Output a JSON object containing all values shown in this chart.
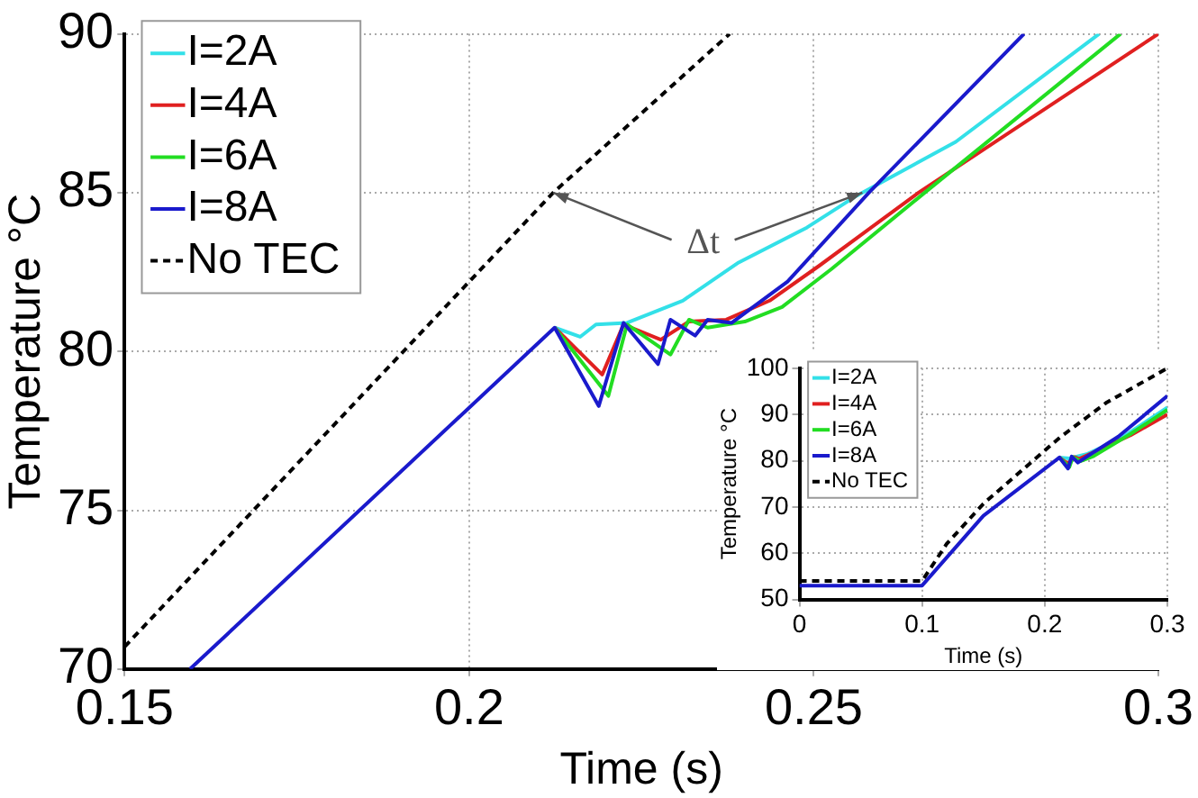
{
  "chart_data": [
    {
      "type": "line",
      "xlabel": "Time (s)",
      "ylabel": "Temperature °C",
      "xlim": [
        0.15,
        0.3
      ],
      "ylim": [
        70,
        90
      ],
      "xticks": [
        0.15,
        0.2,
        0.25,
        0.3
      ],
      "yticks": [
        70,
        75,
        80,
        85,
        90
      ],
      "grid": true,
      "legend": "top left",
      "annotations": [
        {
          "text": "Δt",
          "x": 0.2122,
          "y": 85
        }
      ],
      "series": [
        {
          "name": "I=2A",
          "color": "#33e0e8",
          "line_style": "solid",
          "x": [
            0.2124,
            0.2161,
            0.2184,
            0.2229,
            0.231,
            0.2391,
            0.249,
            0.2562,
            0.2706,
            0.2914
          ],
          "values": [
            80.75,
            80.46,
            80.85,
            80.9,
            81.6,
            82.8,
            83.9,
            84.9,
            86.6,
            90
          ]
        },
        {
          "name": "I=4A",
          "color": "#e02020",
          "line_style": "solid",
          "x": [
            0.2124,
            0.2193,
            0.2224,
            0.2278,
            0.2319,
            0.2373,
            0.2436,
            0.2508,
            0.2652,
            0.3
          ],
          "values": [
            80.75,
            79.27,
            80.85,
            80.37,
            80.94,
            81,
            81.6,
            82.7,
            85,
            90
          ]
        },
        {
          "name": "I=6A",
          "color": "#22dd22",
          "line_style": "solid",
          "x": [
            0.2124,
            0.2202,
            0.2229,
            0.2292,
            0.2319,
            0.2346,
            0.24,
            0.2454,
            0.2526,
            0.2661,
            0.2945
          ],
          "values": [
            80.75,
            78.6,
            80.85,
            79.9,
            81,
            80.75,
            80.94,
            81.4,
            82.6,
            85,
            90
          ]
        },
        {
          "name": "I=8A",
          "color": "#1a1acc",
          "line_style": "solid",
          "x": [
            0.1595,
            0.2124,
            0.2188,
            0.2224,
            0.2274,
            0.2292,
            0.2328,
            0.2346,
            0.2381,
            0.2462,
            0.258,
            0.2805
          ],
          "values": [
            70,
            80.75,
            78.28,
            80.9,
            79.6,
            81,
            80.5,
            81,
            80.9,
            82.2,
            85,
            90
          ]
        },
        {
          "name": "No TEC",
          "color": "#000000",
          "line_style": "dashed",
          "x": [
            0.15,
            0.2122,
            0.2378
          ],
          "values": [
            70.7,
            85,
            90
          ]
        }
      ]
    },
    {
      "type": "line",
      "xlabel": "Time (s)",
      "ylabel": "Temperature °C",
      "xlim": [
        0,
        0.3
      ],
      "ylim": [
        50,
        100
      ],
      "xticks": [
        0,
        0.1,
        0.2,
        0.3
      ],
      "yticks": [
        50,
        60,
        70,
        80,
        90,
        100
      ],
      "grid": true,
      "legend": "top left",
      "series": [
        {
          "name": "I=2A",
          "color": "#33e0e8",
          "line_style": "solid",
          "x": [
            0.212,
            0.22,
            0.235,
            0.26,
            0.3
          ],
          "values": [
            80.7,
            80.5,
            81.5,
            84.5,
            91.5
          ]
        },
        {
          "name": "I=4A",
          "color": "#e02020",
          "line_style": "solid",
          "x": [
            0.212,
            0.219,
            0.224,
            0.228,
            0.27,
            0.3
          ],
          "values": [
            80.7,
            79.3,
            80.8,
            80.4,
            85.5,
            90
          ]
        },
        {
          "name": "I=6A",
          "color": "#22dd22",
          "line_style": "solid",
          "x": [
            0.212,
            0.22,
            0.223,
            0.229,
            0.24,
            0.27,
            0.3
          ],
          "values": [
            80.7,
            78.6,
            80.8,
            79.9,
            81,
            85.8,
            91
          ]
        },
        {
          "name": "I=8A",
          "color": "#1a1acc",
          "line_style": "solid",
          "x": [
            0,
            0.1,
            0.15,
            0.212,
            0.219,
            0.222,
            0.227,
            0.235,
            0.26,
            0.3
          ],
          "values": [
            53,
            53,
            68.1,
            80.7,
            78.3,
            80.9,
            79.6,
            81,
            85.2,
            94
          ]
        },
        {
          "name": "No TEC",
          "color": "#000000",
          "line_style": "dashed",
          "x": [
            0,
            0.1,
            0.12,
            0.15,
            0.2,
            0.2122,
            0.25,
            0.3
          ],
          "values": [
            54,
            54,
            62,
            70.7,
            82.2,
            85,
            92.5,
            100
          ]
        }
      ]
    }
  ]
}
